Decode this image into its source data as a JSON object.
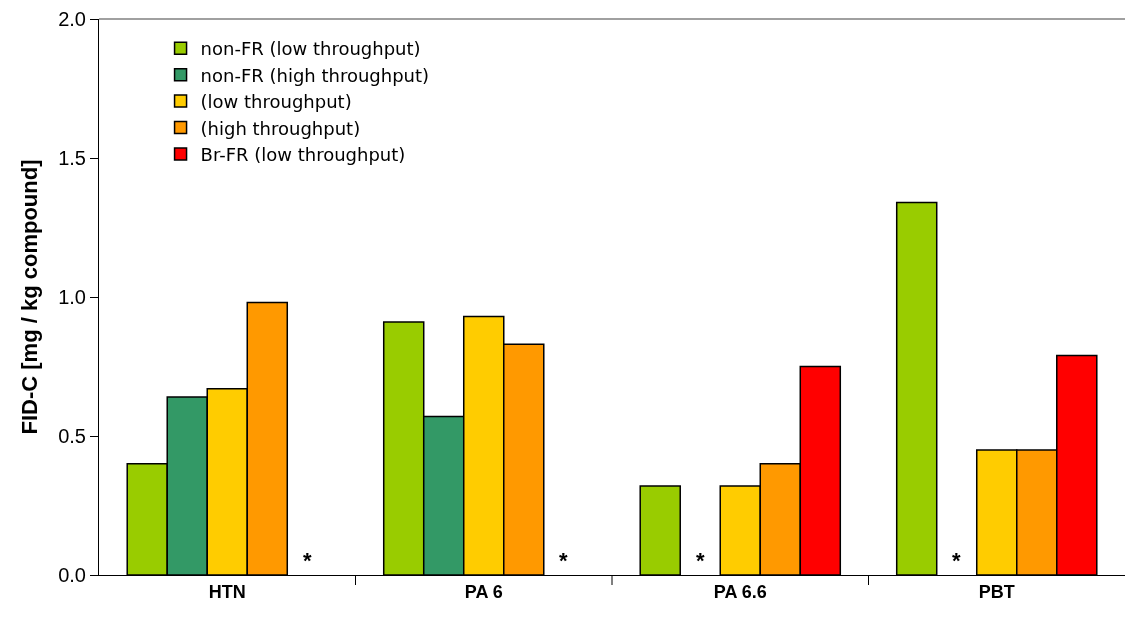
{
  "chart_data": {
    "type": "bar",
    "ylabel": "FID-C [mg / kg compound]",
    "categories": [
      "HTN",
      "PA 6",
      "PA 6.6",
      "PBT"
    ],
    "series": [
      {
        "name": "non-FR (low throughput)",
        "color": "#99cc00",
        "values": [
          0.4,
          0.91,
          0.32,
          1.34
        ]
      },
      {
        "name": "non-FR (high throughput)",
        "color": "#339966",
        "values": [
          0.64,
          0.57,
          null,
          null
        ]
      },
      {
        "name": "(low throughput)",
        "color": "#ffcc00",
        "values": [
          0.67,
          0.93,
          0.32,
          0.45
        ]
      },
      {
        "name": "(high throughput)",
        "color": "#ff9900",
        "values": [
          0.98,
          0.83,
          0.4,
          0.45
        ]
      },
      {
        "name": "Br-FR (low throughput)",
        "color": "#ff0000",
        "values": [
          null,
          null,
          0.75,
          0.79
        ]
      }
    ],
    "annotations": [
      "*",
      "*",
      "*",
      "*"
    ],
    "ylim": [
      0,
      2
    ],
    "yticks": [
      {
        "value": 0,
        "label": "0.0"
      },
      {
        "value": 0.5,
        "label": "0.5"
      },
      {
        "value": 1,
        "label": "1.0"
      },
      {
        "value": 1.5,
        "label": "1.5"
      },
      {
        "value": 2,
        "label": "2.0"
      }
    ],
    "grid": false,
    "legend": "top left"
  }
}
